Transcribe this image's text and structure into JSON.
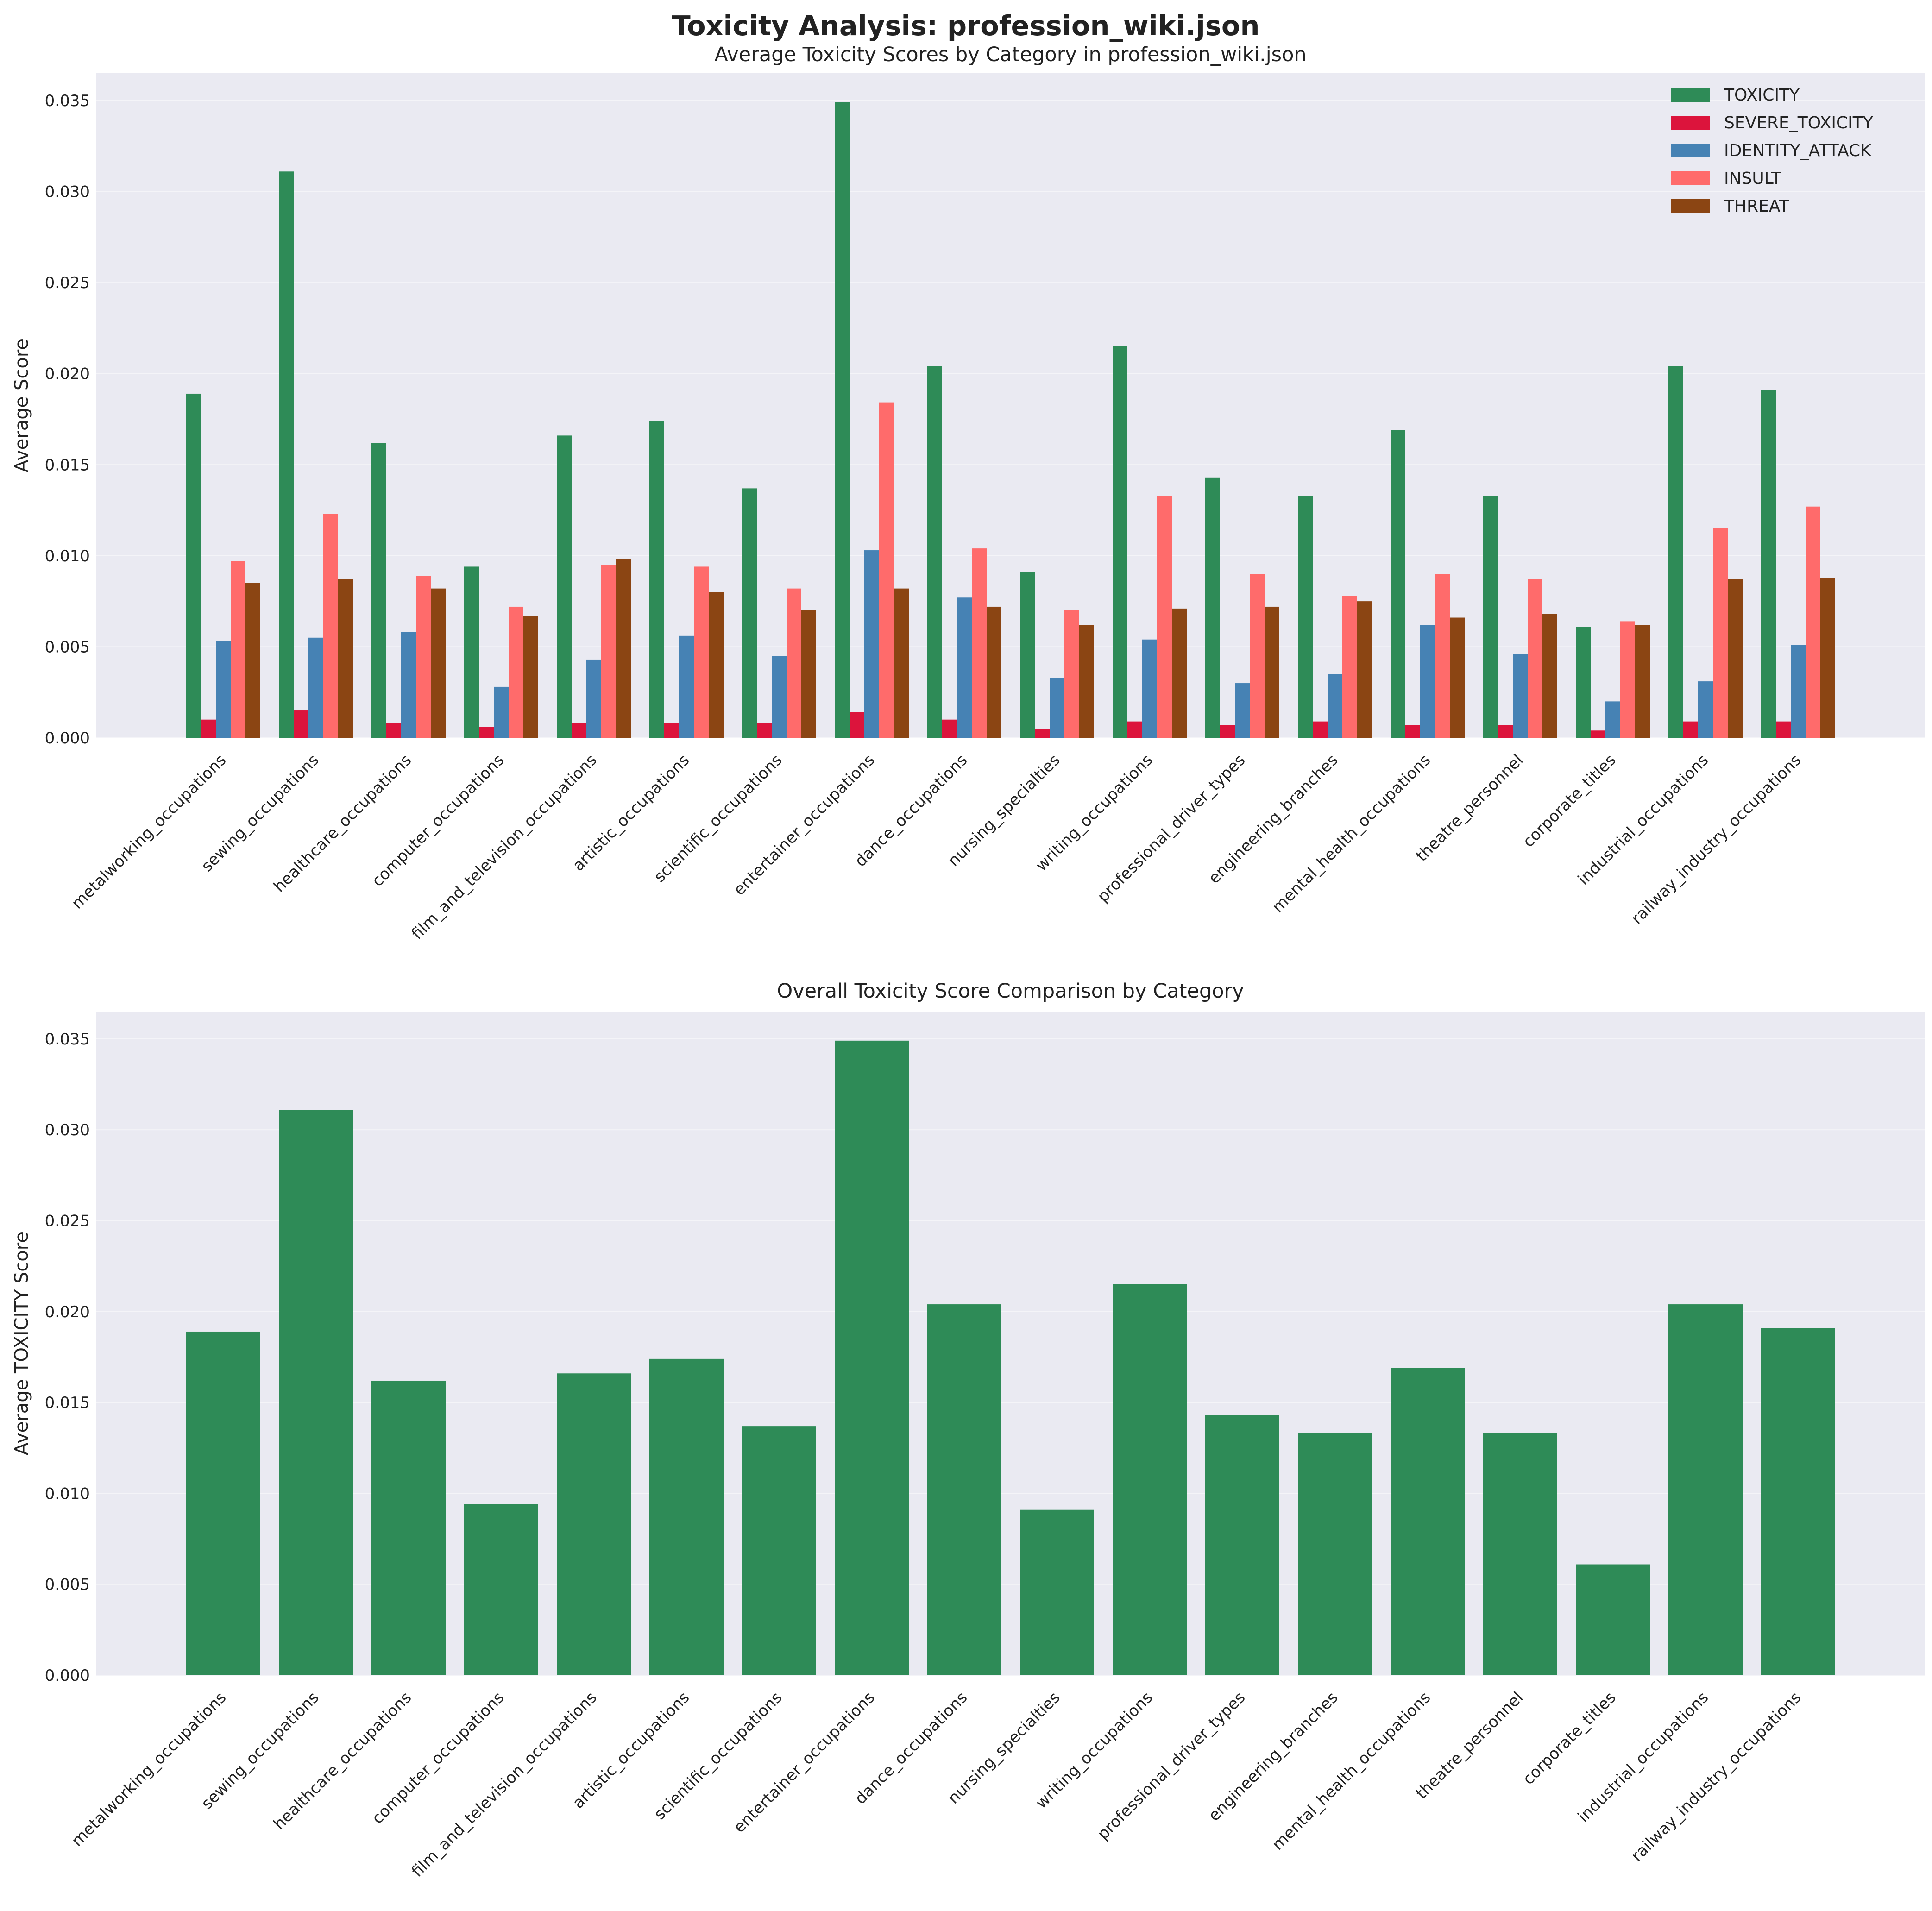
{
  "figure": {
    "suptitle": "Toxicity Analysis: profession_wiki.json"
  },
  "chart_data": [
    {
      "type": "bar",
      "title": "Average Toxicity Scores by Category in profession_wiki.json",
      "xlabel": "",
      "ylabel": "Average Score",
      "ylim": [
        0,
        0.0365
      ],
      "yticks": [
        "0.000",
        "0.005",
        "0.010",
        "0.015",
        "0.020",
        "0.025",
        "0.030",
        "0.035"
      ],
      "grid": true,
      "legend_position": "top-right",
      "categories": [
        "metalworking_occupations",
        "sewing_occupations",
        "healthcare_occupations",
        "computer_occupations",
        "film_and_television_occupations",
        "artistic_occupations",
        "scientific_occupations",
        "entertainer_occupations",
        "dance_occupations",
        "nursing_specialties",
        "writing_occupations",
        "professional_driver_types",
        "engineering_branches",
        "mental_health_occupations",
        "theatre_personnel",
        "corporate_titles",
        "industrial_occupations",
        "railway_industry_occupations"
      ],
      "series": [
        {
          "name": "TOXICITY",
          "color": "#2e8b57",
          "values": [
            0.0189,
            0.0311,
            0.0162,
            0.0094,
            0.0166,
            0.0174,
            0.0137,
            0.0349,
            0.0204,
            0.0091,
            0.0215,
            0.0143,
            0.0133,
            0.0169,
            0.0133,
            0.0061,
            0.0204,
            0.0191
          ]
        },
        {
          "name": "SEVERE_TOXICITY",
          "color": "#dc143c",
          "values": [
            0.001,
            0.0015,
            0.0008,
            0.0006,
            0.0008,
            0.0008,
            0.0008,
            0.0014,
            0.001,
            0.0005,
            0.0009,
            0.0007,
            0.0009,
            0.0007,
            0.0007,
            0.0004,
            0.0009,
            0.0009
          ]
        },
        {
          "name": "IDENTITY_ATTACK",
          "color": "#4682b4",
          "values": [
            0.0053,
            0.0055,
            0.0058,
            0.0028,
            0.0043,
            0.0056,
            0.0045,
            0.0103,
            0.0077,
            0.0033,
            0.0054,
            0.003,
            0.0035,
            0.0062,
            0.0046,
            0.002,
            0.0031,
            0.0051
          ]
        },
        {
          "name": "INSULT",
          "color": "#ff6b6b",
          "values": [
            0.0097,
            0.0123,
            0.0089,
            0.0072,
            0.0095,
            0.0094,
            0.0082,
            0.0184,
            0.0104,
            0.007,
            0.0133,
            0.009,
            0.0078,
            0.009,
            0.0087,
            0.0064,
            0.0115,
            0.0127
          ]
        },
        {
          "name": "THREAT",
          "color": "#8b4513",
          "values": [
            0.0085,
            0.0087,
            0.0082,
            0.0067,
            0.0098,
            0.008,
            0.007,
            0.0082,
            0.0072,
            0.0062,
            0.0071,
            0.0072,
            0.0075,
            0.0066,
            0.0068,
            0.0062,
            0.0087,
            0.0088
          ]
        }
      ]
    },
    {
      "type": "bar",
      "title": "Overall Toxicity Score Comparison by Category",
      "xlabel": "",
      "ylabel": "Average TOXICITY Score",
      "ylim": [
        0,
        0.0365
      ],
      "yticks": [
        "0.000",
        "0.005",
        "0.010",
        "0.015",
        "0.020",
        "0.025",
        "0.030",
        "0.035"
      ],
      "grid": true,
      "categories": [
        "metalworking_occupations",
        "sewing_occupations",
        "healthcare_occupations",
        "computer_occupations",
        "film_and_television_occupations",
        "artistic_occupations",
        "scientific_occupations",
        "entertainer_occupations",
        "dance_occupations",
        "nursing_specialties",
        "writing_occupations",
        "professional_driver_types",
        "engineering_branches",
        "mental_health_occupations",
        "theatre_personnel",
        "corporate_titles",
        "industrial_occupations",
        "railway_industry_occupations"
      ],
      "series": [
        {
          "name": "TOXICITY",
          "color": "#2e8b57",
          "values": [
            0.0189,
            0.0311,
            0.0162,
            0.0094,
            0.0166,
            0.0174,
            0.0137,
            0.0349,
            0.0204,
            0.0091,
            0.0215,
            0.0143,
            0.0133,
            0.0169,
            0.0133,
            0.0061,
            0.0204,
            0.0191
          ]
        }
      ]
    }
  ]
}
